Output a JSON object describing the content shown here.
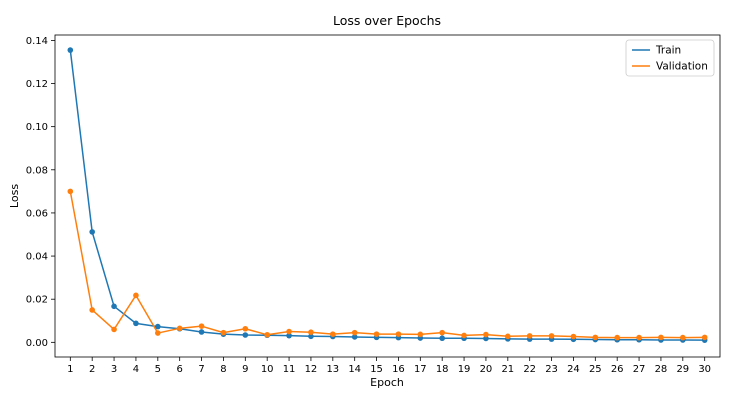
{
  "chart_data": {
    "type": "line",
    "title": "Loss over Epochs",
    "xlabel": "Epoch",
    "ylabel": "Loss",
    "x": [
      1,
      2,
      3,
      4,
      5,
      6,
      7,
      8,
      9,
      10,
      11,
      12,
      13,
      14,
      15,
      16,
      17,
      18,
      19,
      20,
      21,
      22,
      23,
      24,
      25,
      26,
      27,
      28,
      29,
      30
    ],
    "xlim": [
      0.3,
      30.7
    ],
    "ylim": [
      -0.0068,
      0.1425
    ],
    "yticks": [
      0.0,
      0.02,
      0.04,
      0.06,
      0.08,
      0.1,
      0.12,
      0.14
    ],
    "ytick_labels": [
      "0.00",
      "0.02",
      "0.04",
      "0.06",
      "0.08",
      "0.10",
      "0.12",
      "0.14"
    ],
    "grid": false,
    "legend_position": "top-right",
    "series": [
      {
        "name": "Train",
        "color": "#1f77b4",
        "values": [
          0.1355,
          0.0512,
          0.0167,
          0.0088,
          0.0073,
          0.0063,
          0.0048,
          0.0038,
          0.0034,
          0.0033,
          0.0031,
          0.0028,
          0.0027,
          0.0025,
          0.0023,
          0.0022,
          0.002,
          0.0019,
          0.0019,
          0.0018,
          0.0016,
          0.0015,
          0.0015,
          0.0014,
          0.0013,
          0.0012,
          0.0012,
          0.0011,
          0.0011,
          0.001
        ]
      },
      {
        "name": "Validation",
        "color": "#ff7f0e",
        "values": [
          0.07,
          0.015,
          0.006,
          0.0218,
          0.0043,
          0.0065,
          0.0075,
          0.0045,
          0.0063,
          0.0035,
          0.005,
          0.0047,
          0.0038,
          0.0045,
          0.0038,
          0.0038,
          0.0037,
          0.0045,
          0.0032,
          0.0036,
          0.0028,
          0.003,
          0.003,
          0.0027,
          0.0023,
          0.0022,
          0.0022,
          0.0023,
          0.0022,
          0.0023
        ]
      }
    ]
  }
}
